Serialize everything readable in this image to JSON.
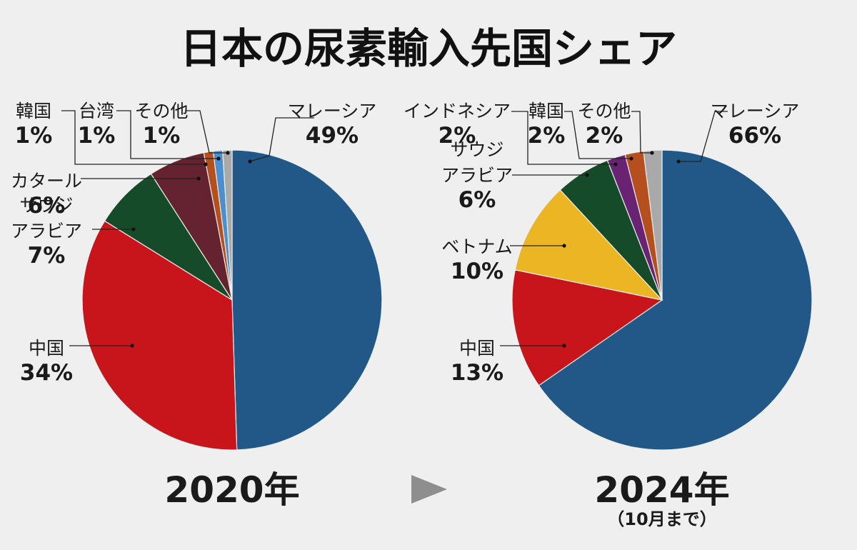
{
  "title": "日本の尿素輸入先国シェア",
  "arrow_icon": "right-triangle-icon",
  "colors": {
    "malaysia": "#225887",
    "china": "#c8141b",
    "saudi": "#164b2a",
    "qatar": "#652330",
    "taiwan": "#4b8fcf",
    "korea": "#b5501e",
    "other": "#a9a9a9",
    "vietnam": "#ebb523",
    "indonesia": "#6a2373"
  },
  "chart_data": [
    {
      "type": "pie",
      "title": "2020年",
      "note": "",
      "slices": [
        {
          "name": "マレーシア",
          "value": 49,
          "label": "49%",
          "color": "#225887"
        },
        {
          "name": "中国",
          "value": 34,
          "label": "34%",
          "color": "#c8141b"
        },
        {
          "name": "サウジアラビア",
          "name_lines": [
            "サウジ",
            "アラビア"
          ],
          "value": 7,
          "label": "7%",
          "color": "#164b2a"
        },
        {
          "name": "カタール",
          "value": 6,
          "label": "6%",
          "color": "#652330"
        },
        {
          "name": "韓国",
          "value": 1,
          "label": "1%",
          "color": "#b5501e"
        },
        {
          "name": "台湾",
          "value": 1,
          "label": "1%",
          "color": "#4b8fcf"
        },
        {
          "name": "その他",
          "value": 1,
          "label": "1%",
          "color": "#a9a9a9"
        }
      ]
    },
    {
      "type": "pie",
      "title": "2024年",
      "note": "（10月まで）",
      "slices": [
        {
          "name": "マレーシア",
          "value": 66,
          "label": "66%",
          "color": "#225887"
        },
        {
          "name": "中国",
          "value": 13,
          "label": "13%",
          "color": "#c8141b"
        },
        {
          "name": "ベトナム",
          "value": 10,
          "label": "10%",
          "color": "#ebb523"
        },
        {
          "name": "サウジアラビア",
          "name_lines": [
            "サウジ",
            "アラビア"
          ],
          "value": 6,
          "label": "6%",
          "color": "#164b2a"
        },
        {
          "name": "インドネシア",
          "value": 2,
          "label": "2%",
          "color": "#6a2373"
        },
        {
          "name": "韓国",
          "value": 2,
          "label": "2%",
          "color": "#b5501e"
        },
        {
          "name": "その他",
          "value": 2,
          "label": "2%",
          "color": "#a9a9a9"
        }
      ]
    }
  ]
}
